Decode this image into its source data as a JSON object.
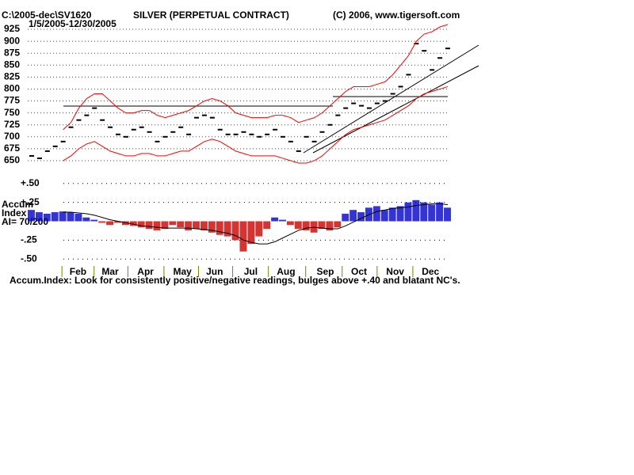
{
  "chart_data": [
    {
      "type": "line",
      "title": "SILVER (PERPETUAL CONTRACT)",
      "subtitle": "1/5/2005-12/30/2005",
      "annotations": [
        "C:\\2005-dec\\SV1620",
        "(C) 2006, www.tigersoft.com"
      ],
      "x": [
        0,
        1,
        2,
        3,
        4,
        5,
        6,
        7,
        8,
        9,
        10,
        11,
        12,
        13,
        14,
        15,
        16,
        17,
        18,
        19,
        20,
        21,
        22,
        23,
        24,
        25,
        26,
        27,
        28,
        29,
        30,
        31,
        32,
        33,
        34,
        35,
        36,
        37,
        38,
        39,
        40,
        41,
        42,
        43,
        44,
        45,
        46,
        47,
        48,
        49,
        50,
        51,
        52,
        53
      ],
      "xlim": [
        0,
        53
      ],
      "ylim": [
        640,
        935
      ],
      "yticks": [
        650,
        675,
        700,
        725,
        750,
        775,
        800,
        825,
        850,
        875,
        900,
        925
      ],
      "grid": true,
      "grid_color": "#008000",
      "series": [
        {
          "name": "Close",
          "color": "#000000",
          "mode": "ticks",
          "values": [
            660,
            655,
            670,
            680,
            690,
            720,
            735,
            745,
            760,
            735,
            720,
            705,
            700,
            715,
            720,
            710,
            690,
            700,
            710,
            720,
            705,
            740,
            745,
            740,
            715,
            705,
            705,
            710,
            705,
            700,
            705,
            715,
            700,
            690,
            670,
            700,
            690,
            710,
            725,
            745,
            760,
            770,
            765,
            760,
            770,
            775,
            790,
            805,
            830,
            895,
            880,
            840,
            865,
            885
          ]
        },
        {
          "name": "Upper band",
          "color": "#ff0000",
          "mode": "line",
          "values": [
            null,
            null,
            null,
            null,
            715,
            730,
            760,
            780,
            790,
            790,
            775,
            760,
            750,
            750,
            755,
            755,
            745,
            740,
            745,
            750,
            755,
            765,
            775,
            780,
            775,
            765,
            750,
            745,
            740,
            740,
            740,
            745,
            745,
            740,
            730,
            735,
            740,
            750,
            765,
            780,
            795,
            805,
            805,
            805,
            810,
            815,
            830,
            850,
            870,
            900,
            915,
            920,
            930,
            935
          ]
        },
        {
          "name": "Lower band",
          "color": "#ff0000",
          "mode": "line",
          "values": [
            null,
            null,
            null,
            null,
            650,
            660,
            675,
            685,
            690,
            680,
            670,
            665,
            660,
            660,
            665,
            665,
            660,
            660,
            665,
            670,
            670,
            680,
            690,
            695,
            690,
            680,
            670,
            665,
            660,
            660,
            660,
            660,
            655,
            650,
            645,
            645,
            650,
            660,
            675,
            690,
            705,
            715,
            720,
            725,
            730,
            735,
            745,
            755,
            765,
            780,
            790,
            795,
            800,
            805
          ]
        }
      ]
    },
    {
      "type": "bar",
      "ylabel": [
        "Accum",
        "Index"
      ],
      "annotations": [
        "AI= 70/200"
      ],
      "note": "Accum.Index: Look for consistently positive/negative readings, bulges above +.40 and blatant NC's.",
      "xlim": [
        0,
        53
      ],
      "ylim": [
        -0.55,
        0.55
      ],
      "yticks": [
        {
          "value": 0.5,
          "label": "+.50"
        },
        {
          "value": 0.25,
          "label": "+.25"
        },
        {
          "value": -0.25,
          "label": "-.25"
        },
        {
          "value": -0.5,
          "label": "-.50"
        }
      ],
      "xticks": [
        {
          "value": 5.9,
          "label": "Feb"
        },
        {
          "value": 10,
          "label": "Mar"
        },
        {
          "value": 14.5,
          "label": "Apr"
        },
        {
          "value": 19.2,
          "label": "May"
        },
        {
          "value": 23.3,
          "label": "Jun"
        },
        {
          "value": 27.9,
          "label": "Jul"
        },
        {
          "value": 32.4,
          "label": "Aug"
        },
        {
          "value": 37.4,
          "label": "Sep"
        },
        {
          "value": 41.7,
          "label": "Oct"
        },
        {
          "value": 46.3,
          "label": "Nov"
        },
        {
          "value": 50.8,
          "label": "Dec"
        }
      ],
      "pos_color": "#0000cc",
      "neg_color": "#cc0000",
      "series": [
        {
          "name": "Accum",
          "mode": "bars",
          "values": [
            0.15,
            0.12,
            0.1,
            0.12,
            0.13,
            0.12,
            0.1,
            0.05,
            0.02,
            -0.02,
            -0.05,
            -0.02,
            -0.05,
            -0.06,
            -0.08,
            -0.1,
            -0.12,
            -0.1,
            -0.05,
            -0.08,
            -0.12,
            -0.1,
            -0.12,
            -0.15,
            -0.18,
            -0.2,
            -0.25,
            -0.4,
            -0.3,
            -0.2,
            -0.1,
            0.05,
            0.02,
            -0.05,
            -0.1,
            -0.12,
            -0.15,
            -0.1,
            -0.12,
            -0.08,
            0.1,
            0.15,
            0.12,
            0.18,
            0.2,
            0.15,
            0.18,
            0.2,
            0.25,
            0.28,
            0.25,
            0.22,
            0.25,
            0.18
          ]
        },
        {
          "name": "Average",
          "mode": "line",
          "color": "#000000",
          "values": [
            null,
            null,
            null,
            null,
            0.12,
            0.12,
            0.11,
            0.1,
            0.08,
            0.05,
            0.02,
            0,
            -0.02,
            -0.04,
            -0.06,
            -0.07,
            -0.08,
            -0.09,
            -0.09,
            -0.09,
            -0.09,
            -0.1,
            -0.11,
            -0.12,
            -0.14,
            -0.16,
            -0.19,
            -0.25,
            -0.28,
            -0.3,
            -0.3,
            -0.27,
            -0.22,
            -0.17,
            -0.12,
            -0.09,
            -0.08,
            -0.09,
            -0.1,
            -0.1,
            -0.06,
            -0.01,
            0.04,
            0.09,
            0.13,
            0.15,
            0.17,
            0.18,
            0.19,
            0.21,
            0.22,
            0.23,
            0.23,
            0.22
          ]
        }
      ]
    }
  ]
}
